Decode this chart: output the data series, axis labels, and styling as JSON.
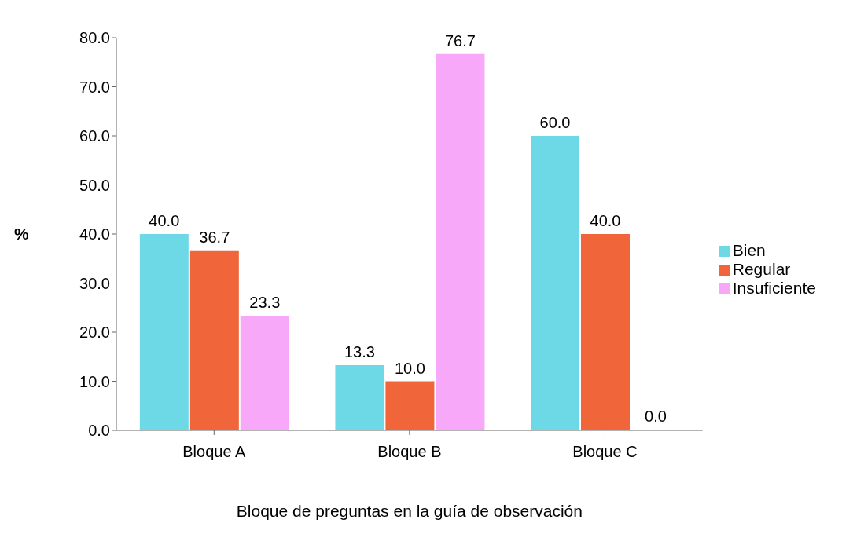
{
  "chart_data": {
    "type": "bar",
    "xlabel": "Bloque de preguntas en la guía de observación",
    "ylabel": "%",
    "categories": [
      "Bloque A",
      "Bloque B",
      "Bloque C"
    ],
    "series": [
      {
        "name": "Bien",
        "color": "#6dd9e6",
        "values": [
          40.0,
          13.3,
          60.0
        ],
        "value_labels": [
          "40.0",
          "13.3",
          "60.0"
        ]
      },
      {
        "name": "Regular",
        "color": "#f0653a",
        "values": [
          36.7,
          10.0,
          40.0
        ],
        "value_labels": [
          "36.7",
          "10.0",
          "40.0"
        ]
      },
      {
        "name": "Insuficiente",
        "color": "#f8a8f8",
        "values": [
          23.3,
          76.7,
          0.0
        ],
        "value_labels": [
          "23.3",
          "76.7",
          "0.0"
        ]
      }
    ],
    "ylim": [
      0,
      80
    ],
    "yticks": [
      {
        "value": 0,
        "label": "0.0"
      },
      {
        "value": 10,
        "label": "10.0"
      },
      {
        "value": 20,
        "label": "20.0"
      },
      {
        "value": 30,
        "label": "30.0"
      },
      {
        "value": 40,
        "label": "40.0"
      },
      {
        "value": 50,
        "label": "50.0"
      },
      {
        "value": 60,
        "label": "60.0"
      },
      {
        "value": 70,
        "label": "70.0"
      },
      {
        "value": 80,
        "label": "80.0"
      }
    ],
    "grid": false,
    "legend": "right"
  }
}
